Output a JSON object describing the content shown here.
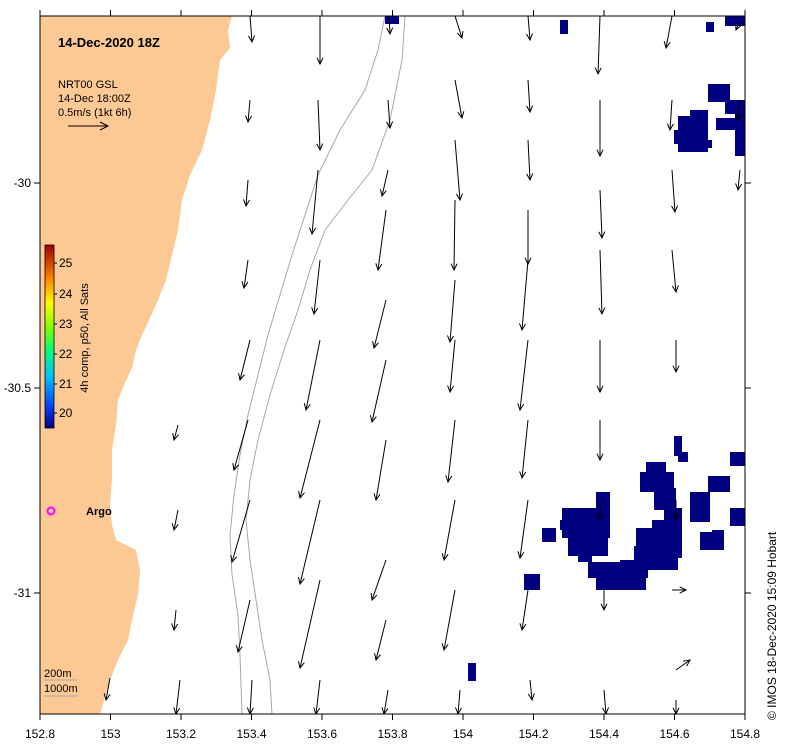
{
  "map": {
    "title": "14-Dec-2020 18Z",
    "product_line1": "NRT00 GSL",
    "product_line2": "14-Dec 18:00Z",
    "scale_label": "0.5m/s (1kt 6h)",
    "colorbar_title": "4h comp, p50, All Sats",
    "colorbar_ticks": [
      "25",
      "24",
      "23",
      "22",
      "21",
      "20"
    ],
    "argo_label": "Argo",
    "depth_label_1": "200m",
    "depth_label_2": "1000m",
    "credit": "© IMOS 18-Dec-2020 15:09 Hobart",
    "x_ticks": [
      "152.8",
      "153",
      "153.2",
      "153.4",
      "153.6",
      "153.8",
      "154",
      "154.2",
      "154.4",
      "154.6",
      "154.8"
    ],
    "y_ticks": [
      "-30",
      "-30.5",
      "-31"
    ],
    "colors": {
      "land": "#FCC994",
      "sst_cold": "#000080",
      "argo": "#FF00FF",
      "isobath": "#A8A8A8"
    }
  }
}
